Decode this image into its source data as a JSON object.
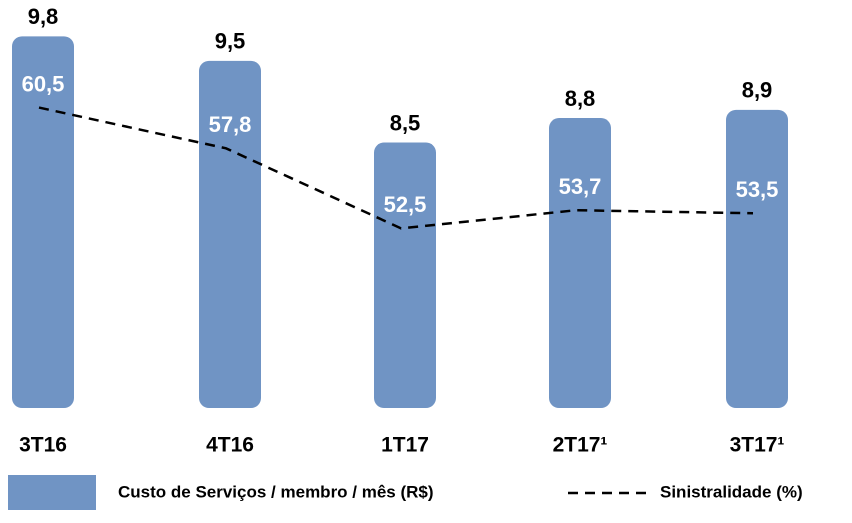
{
  "chart_data": {
    "type": "bar",
    "categories": [
      "3T16",
      "4T16",
      "1T17",
      "2T17¹",
      "3T17¹"
    ],
    "series": [
      {
        "name": "Custo de Serviços / membro / mês (R$)",
        "color": "#7094c4",
        "values": [
          9.8,
          9.5,
          8.5,
          8.8,
          8.9
        ],
        "value_labels": [
          "9,8",
          "9,5",
          "8,5",
          "8,8",
          "8,9"
        ]
      },
      {
        "name": "Sinistralidade (%)",
        "type": "line",
        "axis": "y2",
        "color": "#000000",
        "values": [
          60.5,
          57.8,
          52.5,
          53.7,
          53.5
        ],
        "value_labels": [
          "60,5",
          "57,8",
          "52,5",
          "53,7",
          "53,5"
        ]
      }
    ],
    "ylim": [
      5.25,
      10.0
    ],
    "y2lim": [
      40.6,
      66.3
    ]
  }
}
